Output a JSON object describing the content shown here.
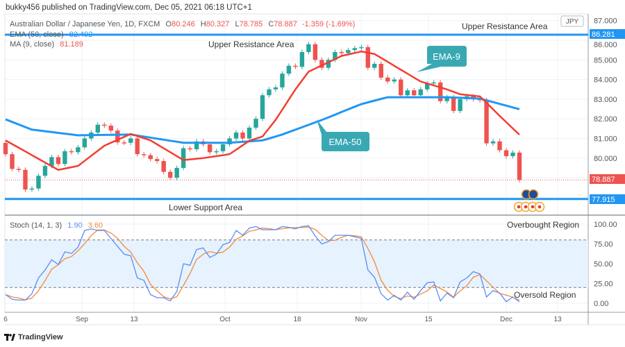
{
  "header": {
    "published": "bukky456 published on TradingView.com, Dec 05, 2021 06:18 UTC+1"
  },
  "legend": {
    "symbol": "Australian Dollar / Japanese Yen, 1D, FXCM",
    "o_label": "O",
    "o": "80.246",
    "h_label": "H",
    "h": "80.327",
    "l_label": "L",
    "l": "78.785",
    "c_label": "C",
    "c": "78.887",
    "change": "-1.359 (-1.69%)",
    "ema_label": "EMA (50, close)",
    "ema_value": "82.492",
    "ma_label": "MA (9, close)",
    "ma_value": "81.189",
    "stoch_label": "Stoch (14, 1, 3)",
    "stoch_k": "1.90",
    "stoch_d": "3.60"
  },
  "annotations": {
    "upper_resistance_1": "Upper Resistance Area",
    "upper_resistance_2": "Upper Resistance Area",
    "lower_support": "Lower Support Area",
    "ema9_callout": "EMA-9",
    "ema50_callout": "EMA-50",
    "overbought": "Overbought Region",
    "oversold": "Oversold Region"
  },
  "price_axis": {
    "currency": "JPY",
    "ticks": [
      "87.000",
      "86.000",
      "85.000",
      "84.000",
      "83.000",
      "82.000",
      "81.000",
      "80.000"
    ],
    "resistance_label": "86.281",
    "last_price_label": "78.887",
    "support_label": "77.915"
  },
  "stoch_axis": {
    "ticks": [
      "100.00",
      "75.00",
      "50.00",
      "25.00",
      "0.00"
    ]
  },
  "time_axis": {
    "labels": [
      "6",
      "Sep",
      "13",
      "Oct",
      "18",
      "Nov",
      "15",
      "Dec",
      "13"
    ]
  },
  "footer": {
    "brand": "TradingView"
  },
  "colors": {
    "up": "#26a69a",
    "down": "#ef5350",
    "ema50": "#2196f3",
    "ma9": "#f23d31",
    "stochK": "#5b8cf5",
    "stochD": "#f5893b",
    "callout": "#3aa8b3"
  },
  "chart_data": {
    "type": "candlestick",
    "title": "Australian Dollar / Japanese Yen, 1D, FXCM",
    "first_open": 80.77,
    "close": [
      80.2,
      79.45,
      79.4,
      78.4,
      78.45,
      79.1,
      79.6,
      80.05,
      79.7,
      80.35,
      80.3,
      80.55,
      81.0,
      81.3,
      81.7,
      81.65,
      81.4,
      80.8,
      80.78,
      81.0,
      80.2,
      80.15,
      79.95,
      79.85,
      79.3,
      79.0,
      79.5,
      80.5,
      80.45,
      80.85,
      80.7,
      80.3,
      80.35,
      80.7,
      81.0,
      81.3,
      81.0,
      81.55,
      82.0,
      83.2,
      83.5,
      83.6,
      84.3,
      84.7,
      84.65,
      85.4,
      85.8,
      85.0,
      84.6,
      85.0,
      85.4,
      85.35,
      85.5,
      85.6,
      85.65,
      84.6,
      84.8,
      84.1,
      83.9,
      84.0,
      83.2,
      83.45,
      83.2,
      83.5,
      83.8,
      83.85,
      82.9,
      83.1,
      82.4,
      83.0,
      83.15,
      83.0,
      82.95,
      80.75,
      80.85,
      80.4,
      80.1,
      80.28,
      78.887
    ],
    "ema50_keypoints": [
      [
        0,
        81.97
      ],
      [
        4,
        81.45
      ],
      [
        11,
        81.16
      ],
      [
        19,
        81.2
      ],
      [
        27,
        80.78
      ],
      [
        34,
        80.78
      ],
      [
        39,
        80.9
      ],
      [
        42,
        81.2
      ],
      [
        48,
        81.94
      ],
      [
        54,
        82.75
      ],
      [
        58,
        83.1
      ],
      [
        67,
        83.1
      ],
      [
        72,
        83.03
      ],
      [
        78,
        82.49
      ]
    ],
    "ma9_keypoints": [
      [
        0,
        80.9
      ],
      [
        8,
        79.4
      ],
      [
        11,
        79.6
      ],
      [
        15,
        80.63
      ],
      [
        19,
        81.23
      ],
      [
        22,
        80.9
      ],
      [
        27,
        79.9
      ],
      [
        30,
        80.0
      ],
      [
        34,
        80.2
      ],
      [
        37,
        80.88
      ],
      [
        39,
        81.1
      ],
      [
        41,
        81.95
      ],
      [
        44,
        83.5
      ],
      [
        46,
        84.4
      ],
      [
        51,
        85.2
      ],
      [
        54,
        85.43
      ],
      [
        56,
        85.3
      ],
      [
        60,
        84.5
      ],
      [
        63,
        83.9
      ],
      [
        67,
        83.5
      ],
      [
        69,
        83.25
      ],
      [
        72,
        83.14
      ],
      [
        75,
        82.15
      ],
      [
        78,
        81.19
      ]
    ],
    "resistance": 86.281,
    "support": 77.915,
    "ylim": [
      77.3,
      87.2
    ],
    "stoch_k": [
      11,
      5,
      4,
      4,
      12,
      32,
      42,
      55,
      49,
      65,
      63,
      71,
      92,
      94,
      92,
      92,
      82,
      72,
      62,
      60,
      32,
      29,
      11,
      7,
      7,
      3,
      15,
      50,
      48,
      68,
      70,
      58,
      62,
      74,
      77,
      92,
      86,
      95,
      97,
      93,
      93,
      93,
      97,
      96,
      94,
      97,
      98,
      85,
      75,
      78,
      86,
      86,
      86,
      84,
      82,
      42,
      33,
      12,
      4,
      10,
      4,
      14,
      5,
      16,
      26,
      27,
      3,
      13,
      7,
      27,
      32,
      40,
      37,
      8,
      16,
      13,
      2,
      8,
      1.9
    ],
    "stoch_levels": {
      "overbought": 80,
      "oversold": 20
    }
  }
}
